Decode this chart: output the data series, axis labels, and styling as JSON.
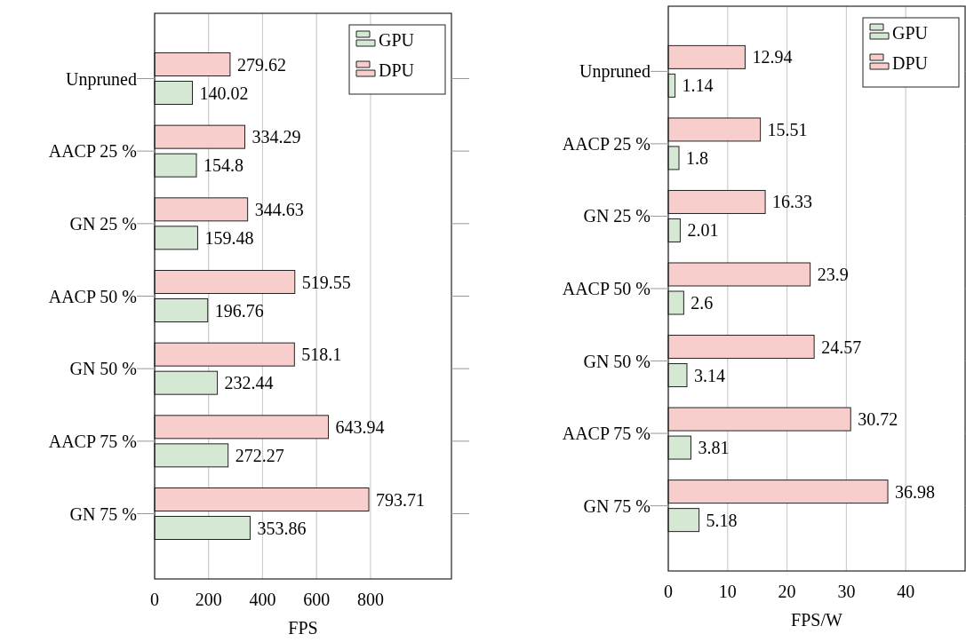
{
  "chart_data": [
    {
      "type": "bar",
      "orientation": "horizontal",
      "categories": [
        "Unpruned",
        "AACP 25 %",
        "GN 25 %",
        "AACP 50 %",
        "GN 50 %",
        "AACP 75 %",
        "GN 75 %"
      ],
      "series": [
        {
          "name": "GPU",
          "color": "#d5e8d4",
          "values": [
            140.02,
            154.8,
            159.48,
            196.76,
            232.44,
            272.27,
            353.86
          ]
        },
        {
          "name": "DPU",
          "color": "#f8cecc",
          "values": [
            279.62,
            334.29,
            344.63,
            519.55,
            518.1,
            643.94,
            793.71
          ]
        }
      ],
      "xlabel": "FPS",
      "xlim": [
        0,
        1100
      ],
      "xticks": [
        0,
        200,
        400,
        600,
        800
      ],
      "grid": "x",
      "legend": "top right",
      "data_labels": true
    },
    {
      "type": "bar",
      "orientation": "horizontal",
      "categories": [
        "Unpruned",
        "AACP 25 %",
        "GN 25 %",
        "AACP 50 %",
        "GN 50 %",
        "AACP 75 %",
        "GN 75 %"
      ],
      "series": [
        {
          "name": "GPU",
          "color": "#d5e8d4",
          "values": [
            1.14,
            1.8,
            2.01,
            2.6,
            3.14,
            3.81,
            5.18
          ]
        },
        {
          "name": "DPU",
          "color": "#f8cecc",
          "values": [
            12.94,
            15.51,
            16.33,
            23.9,
            24.57,
            30.72,
            36.98
          ]
        }
      ],
      "xlabel": "FPS/W",
      "xlim": [
        0,
        50
      ],
      "xticks": [
        0,
        10,
        20,
        30,
        40
      ],
      "grid": "x",
      "legend": "top right",
      "data_labels": true
    }
  ]
}
